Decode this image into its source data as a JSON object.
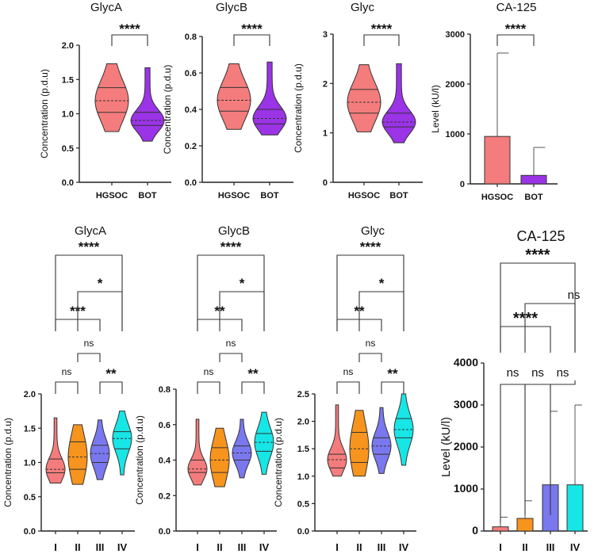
{
  "figure_label": "GlycA, GlycB, Glyc and CA-125 comparisons",
  "colors": {
    "HGSOC": "#f47c7c",
    "BOT": "#9b33e6",
    "I": "#f47c7c",
    "II": "#f7941d",
    "III": "#7a78ee",
    "IV": "#17e6e6",
    "line": "#222222"
  },
  "chart_data": [
    {
      "type": "violin",
      "title": "GlycA",
      "ylabel": "Concentration (p.d.u)",
      "categories": [
        "HGSOC",
        "BOT"
      ],
      "ylim": [
        0,
        2.0
      ],
      "yticks": [
        "0.0",
        "0.5",
        "1.0",
        "1.5",
        "2.0"
      ],
      "violins": [
        {
          "min": 0.74,
          "q1": 1.02,
          "median": 1.19,
          "q3": 1.38,
          "max": 1.73
        },
        {
          "min": 0.6,
          "q1": 0.83,
          "median": 0.9,
          "q3": 1.02,
          "max": 1.67
        }
      ],
      "comparisons": [
        {
          "pair": [
            "HGSOC",
            "BOT"
          ],
          "label": "****"
        }
      ]
    },
    {
      "type": "violin",
      "title": "GlycB",
      "ylabel": "Concentration (p.d.u)",
      "categories": [
        "HGSOC",
        "BOT"
      ],
      "ylim": [
        0,
        0.8
      ],
      "yticks": [
        "0.0",
        "0.2",
        "0.4",
        "0.6",
        "0.8"
      ],
      "violins": [
        {
          "min": 0.29,
          "q1": 0.39,
          "median": 0.45,
          "q3": 0.52,
          "max": 0.65
        },
        {
          "min": 0.26,
          "q1": 0.32,
          "median": 0.35,
          "q3": 0.4,
          "max": 0.66
        }
      ],
      "comparisons": [
        {
          "pair": [
            "HGSOC",
            "BOT"
          ],
          "label": "****"
        }
      ]
    },
    {
      "type": "violin",
      "title": "Glyc",
      "ylabel": "Concentration (p.d.u)",
      "categories": [
        "HGSOC",
        "BOT"
      ],
      "ylim": [
        0,
        3
      ],
      "yticks": [
        "0",
        "1",
        "2",
        "3"
      ],
      "violins": [
        {
          "min": 1.02,
          "q1": 1.4,
          "median": 1.62,
          "q3": 1.88,
          "max": 2.38
        },
        {
          "min": 0.8,
          "q1": 1.12,
          "median": 1.22,
          "q3": 1.4,
          "max": 2.4
        }
      ],
      "comparisons": [
        {
          "pair": [
            "HGSOC",
            "BOT"
          ],
          "label": "****"
        }
      ]
    },
    {
      "type": "bar",
      "title": "CA-125",
      "ylabel": "Level (kU/l)",
      "categories": [
        "HGSOC",
        "BOT"
      ],
      "values": [
        950,
        170
      ],
      "error_upper": [
        2620,
        730
      ],
      "ylim": [
        0,
        3000
      ],
      "yticks": [
        "0",
        "1000",
        "2000",
        "3000"
      ],
      "comparisons": [
        {
          "pair": [
            "HGSOC",
            "BOT"
          ],
          "label": "****"
        }
      ]
    },
    {
      "type": "violin",
      "title": "GlycA",
      "ylabel": "Concentration (p.d.u)",
      "categories": [
        "I",
        "II",
        "III",
        "IV"
      ],
      "ylim": [
        0,
        2.0
      ],
      "yticks": [
        "0.0",
        "0.5",
        "1.0",
        "1.5",
        "2.0"
      ],
      "violins": [
        {
          "min": 0.7,
          "q1": 0.85,
          "median": 0.9,
          "q3": 1.05,
          "max": 1.65
        },
        {
          "min": 0.68,
          "q1": 0.9,
          "median": 1.08,
          "q3": 1.3,
          "max": 1.55
        },
        {
          "min": 0.75,
          "q1": 1.0,
          "median": 1.13,
          "q3": 1.25,
          "max": 1.62
        },
        {
          "min": 0.82,
          "q1": 1.2,
          "median": 1.35,
          "q3": 1.45,
          "max": 1.75
        }
      ],
      "comparisons": [
        {
          "pair": [
            "I",
            "II"
          ],
          "label": "ns"
        },
        {
          "pair": [
            "III",
            "IV"
          ],
          "label": "**"
        },
        {
          "pair": [
            "II",
            "III"
          ],
          "label": "ns"
        },
        {
          "pair": [
            "I",
            "III"
          ],
          "label": "***"
        },
        {
          "pair": [
            "II",
            "IV"
          ],
          "label": "*"
        },
        {
          "pair": [
            "I",
            "IV"
          ],
          "label": "****"
        }
      ]
    },
    {
      "type": "violin",
      "title": "GlycB",
      "ylabel": "Concentration (p.d.u)",
      "categories": [
        "I",
        "II",
        "III",
        "IV"
      ],
      "ylim": [
        0,
        0.8
      ],
      "yticks": [
        "0.0",
        "0.2",
        "0.4",
        "0.6",
        "0.8"
      ],
      "violins": [
        {
          "min": 0.26,
          "q1": 0.33,
          "median": 0.35,
          "q3": 0.4,
          "max": 0.63
        },
        {
          "min": 0.25,
          "q1": 0.33,
          "median": 0.4,
          "q3": 0.47,
          "max": 0.58
        },
        {
          "min": 0.3,
          "q1": 0.4,
          "median": 0.44,
          "q3": 0.48,
          "max": 0.63
        },
        {
          "min": 0.32,
          "q1": 0.45,
          "median": 0.5,
          "q3": 0.55,
          "max": 0.67
        }
      ],
      "comparisons": [
        {
          "pair": [
            "I",
            "II"
          ],
          "label": "ns"
        },
        {
          "pair": [
            "III",
            "IV"
          ],
          "label": "**"
        },
        {
          "pair": [
            "II",
            "III"
          ],
          "label": "ns"
        },
        {
          "pair": [
            "I",
            "III"
          ],
          "label": "**"
        },
        {
          "pair": [
            "II",
            "IV"
          ],
          "label": "*"
        },
        {
          "pair": [
            "I",
            "IV"
          ],
          "label": "****"
        }
      ]
    },
    {
      "type": "violin",
      "title": "Glyc",
      "ylabel": "Concentration (p.d.u)",
      "categories": [
        "I",
        "II",
        "III",
        "IV"
      ],
      "ylim": [
        0,
        2.5
      ],
      "yticks": [
        "0.0",
        "0.5",
        "1.0",
        "1.5",
        "2.0",
        "2.5"
      ],
      "violins": [
        {
          "min": 1.0,
          "q1": 1.15,
          "median": 1.3,
          "q3": 1.4,
          "max": 2.3
        },
        {
          "min": 1.0,
          "q1": 1.25,
          "median": 1.5,
          "q3": 1.8,
          "max": 2.2
        },
        {
          "min": 1.05,
          "q1": 1.4,
          "median": 1.55,
          "q3": 1.7,
          "max": 2.25
        },
        {
          "min": 1.2,
          "q1": 1.7,
          "median": 1.85,
          "q3": 2.05,
          "max": 2.5
        }
      ],
      "comparisons": [
        {
          "pair": [
            "I",
            "II"
          ],
          "label": "ns"
        },
        {
          "pair": [
            "III",
            "IV"
          ],
          "label": "**"
        },
        {
          "pair": [
            "II",
            "III"
          ],
          "label": "ns"
        },
        {
          "pair": [
            "I",
            "III"
          ],
          "label": "**"
        },
        {
          "pair": [
            "II",
            "IV"
          ],
          "label": "*"
        },
        {
          "pair": [
            "I",
            "IV"
          ],
          "label": "****"
        }
      ]
    },
    {
      "type": "bar",
      "title": "CA-125",
      "ylabel": "Level (kU/l)",
      "categories": [
        "I",
        "II",
        "III",
        "IV"
      ],
      "values": [
        100,
        300,
        1100,
        1100
      ],
      "error_upper": [
        330,
        720,
        2850,
        3000
      ],
      "ylim": [
        0,
        4000
      ],
      "yticks": [
        "0",
        "1000",
        "2000",
        "3000",
        "4000"
      ],
      "comparisons": [
        {
          "pair": [
            "I",
            "II"
          ],
          "label": "ns"
        },
        {
          "pair": [
            "II",
            "III"
          ],
          "label": "ns"
        },
        {
          "pair": [
            "III",
            "IV"
          ],
          "label": "ns"
        },
        {
          "pair": [
            "I",
            "III"
          ],
          "label": "****"
        },
        {
          "pair": [
            "II",
            "IV"
          ],
          "label": "ns"
        },
        {
          "pair": [
            "I",
            "IV"
          ],
          "label": "****"
        }
      ]
    }
  ]
}
